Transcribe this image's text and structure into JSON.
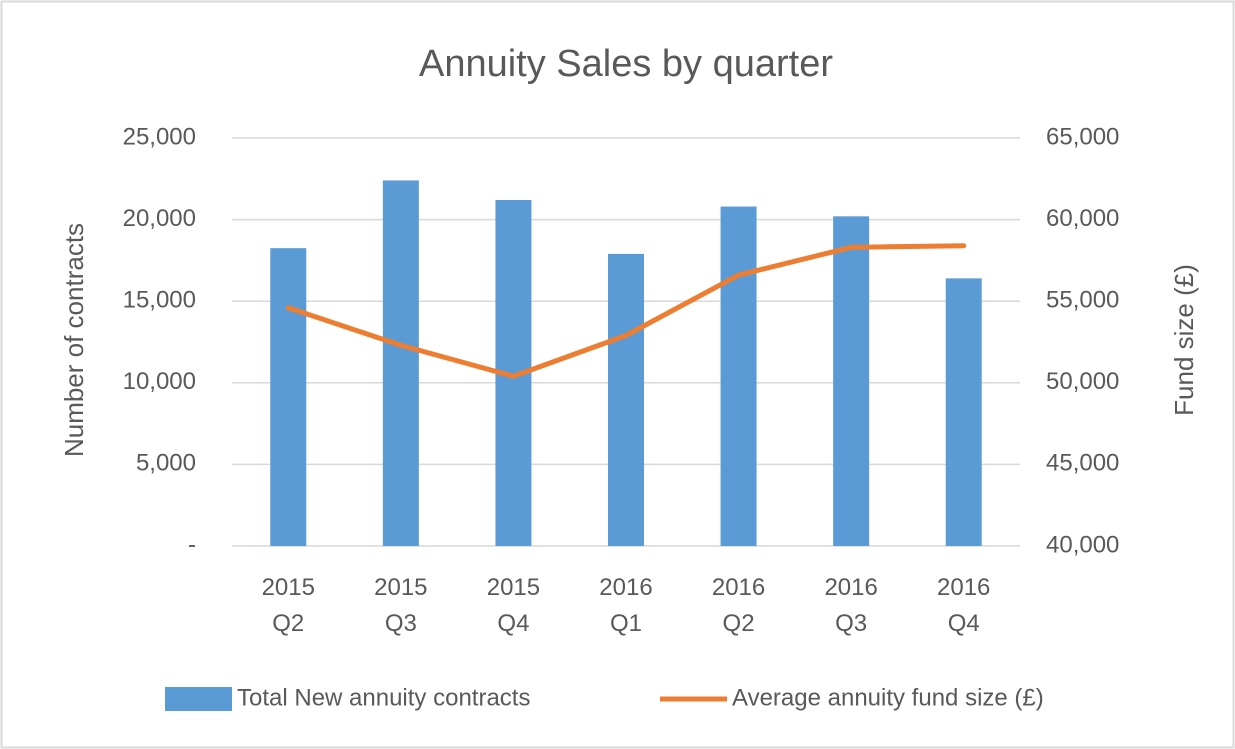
{
  "chart_data": {
    "type": "bar_line",
    "title": "Annuity Sales by quarter",
    "y_label": "Number of contracts",
    "y2_label": "Fund size (£)",
    "categories": [
      "2015 Q2",
      "2015 Q3",
      "2015 Q4",
      "2016 Q1",
      "2016 Q2",
      "2016 Q3",
      "2016 Q4"
    ],
    "series": [
      {
        "name": "Total New annuity contracts",
        "type": "bar",
        "color": "#5b9bd5",
        "values": [
          18250,
          22400,
          21200,
          17900,
          20800,
          20200,
          16400
        ]
      },
      {
        "name": "Average annuity fund size (£)",
        "type": "line",
        "axis": "y2",
        "color": "#ed7d31",
        "values": [
          54600,
          52300,
          50400,
          52900,
          56600,
          58300,
          58400
        ]
      }
    ],
    "ylim": [
      0,
      25000
    ],
    "yticks": [
      {
        "value": 0,
        "label": "-"
      },
      {
        "value": 5000,
        "label": "5,000"
      },
      {
        "value": 10000,
        "label": "10,000"
      },
      {
        "value": 15000,
        "label": "15,000"
      },
      {
        "value": 20000,
        "label": "20,000"
      },
      {
        "value": 25000,
        "label": "25,000"
      }
    ],
    "y2lim": [
      40000,
      65000
    ],
    "y2ticks": [
      {
        "value": 40000,
        "label": "40,000"
      },
      {
        "value": 45000,
        "label": "45,000"
      },
      {
        "value": 50000,
        "label": "50,000"
      },
      {
        "value": 55000,
        "label": "55,000"
      },
      {
        "value": 60000,
        "label": "60,000"
      },
      {
        "value": 65000,
        "label": "65,000"
      }
    ],
    "grid": true,
    "legend": "bottom"
  }
}
